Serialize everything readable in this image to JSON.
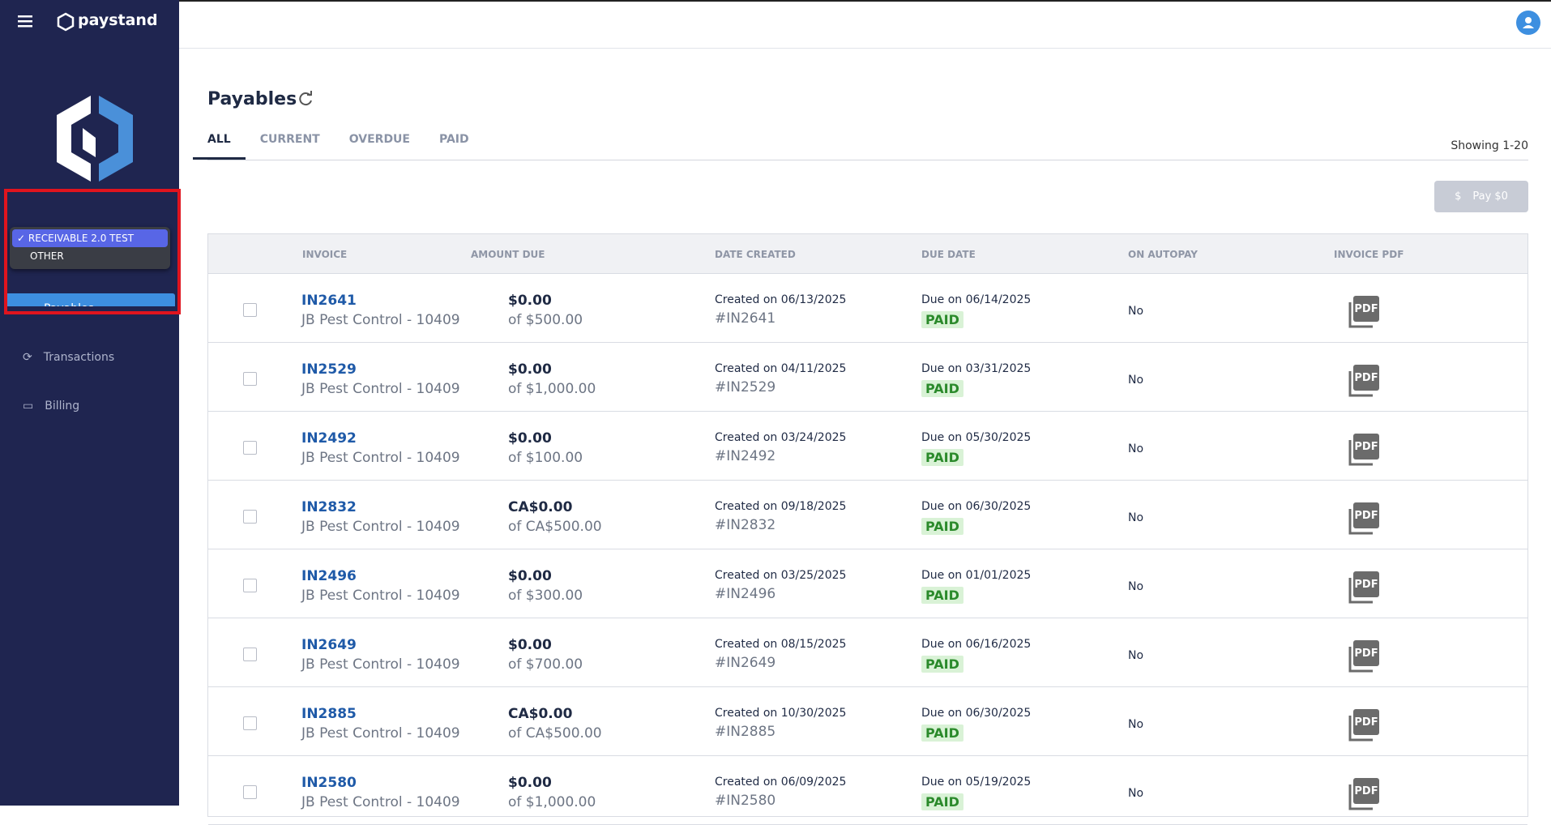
{
  "header": {
    "brand": "paystand"
  },
  "sidebar": {
    "dropdown": [
      "RECEIVABLE 2.0 TEST",
      "OTHER"
    ],
    "active_nav": "Payables",
    "nav": [
      "Transactions",
      "Billing"
    ]
  },
  "main": {
    "title": "Payables",
    "tabs": [
      "ALL",
      "CURRENT",
      "OVERDUE",
      "PAID"
    ],
    "showing": "Showing 1-20",
    "pay_button": "Pay $0"
  },
  "table": {
    "columns": [
      "INVOICE",
      "AMOUNT DUE",
      "DATE CREATED",
      "DUE DATE",
      "ON AUTOPAY",
      "INVOICE PDF"
    ],
    "pdf_label": "PDF",
    "rows": [
      {
        "invoice": "IN2641",
        "customer": "JB Pest Control - 10409",
        "amount": "$0.00",
        "amount_of": "of $500.00",
        "created": "Created on 06/13/2025",
        "ref": "#IN2641",
        "due": "Due on 06/14/2025",
        "status": "PAID",
        "autopay": "No"
      },
      {
        "invoice": "IN2529",
        "customer": "JB Pest Control - 10409",
        "amount": "$0.00",
        "amount_of": "of $1,000.00",
        "created": "Created on 04/11/2025",
        "ref": "#IN2529",
        "due": "Due on 03/31/2025",
        "status": "PAID",
        "autopay": "No"
      },
      {
        "invoice": "IN2492",
        "customer": "JB Pest Control - 10409",
        "amount": "$0.00",
        "amount_of": "of $100.00",
        "created": "Created on 03/24/2025",
        "ref": "#IN2492",
        "due": "Due on 05/30/2025",
        "status": "PAID",
        "autopay": "No"
      },
      {
        "invoice": "IN2832",
        "customer": "JB Pest Control - 10409",
        "amount": "CA$0.00",
        "amount_of": "of CA$500.00",
        "created": "Created on 09/18/2025",
        "ref": "#IN2832",
        "due": "Due on 06/30/2025",
        "status": "PAID",
        "autopay": "No"
      },
      {
        "invoice": "IN2496",
        "customer": "JB Pest Control - 10409",
        "amount": "$0.00",
        "amount_of": "of $300.00",
        "created": "Created on 03/25/2025",
        "ref": "#IN2496",
        "due": "Due on 01/01/2025",
        "status": "PAID",
        "autopay": "No"
      },
      {
        "invoice": "IN2649",
        "customer": "JB Pest Control - 10409",
        "amount": "$0.00",
        "amount_of": "of $700.00",
        "created": "Created on 08/15/2025",
        "ref": "#IN2649",
        "due": "Due on 06/16/2025",
        "status": "PAID",
        "autopay": "No"
      },
      {
        "invoice": "IN2885",
        "customer": "JB Pest Control - 10409",
        "amount": "CA$0.00",
        "amount_of": "of CA$500.00",
        "created": "Created on 10/30/2025",
        "ref": "#IN2885",
        "due": "Due on 06/30/2025",
        "status": "PAID",
        "autopay": "No"
      },
      {
        "invoice": "IN2580",
        "customer": "JB Pest Control - 10409",
        "amount": "$0.00",
        "amount_of": "of $1,000.00",
        "created": "Created on 06/09/2025",
        "ref": "#IN2580",
        "due": "Due on 05/19/2025",
        "status": "PAID",
        "autopay": "No"
      }
    ]
  }
}
